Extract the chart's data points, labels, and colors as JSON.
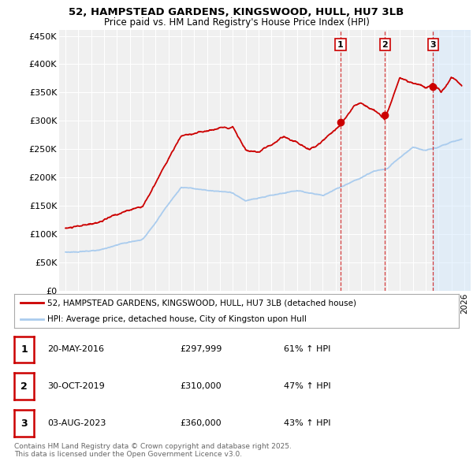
{
  "title_line1": "52, HAMPSTEAD GARDENS, KINGSWOOD, HULL, HU7 3LB",
  "title_line2": "Price paid vs. HM Land Registry's House Price Index (HPI)",
  "background_color": "#ffffff",
  "plot_bg_color": "#f0f0f0",
  "grid_color": "#ffffff",
  "red_color": "#cc0000",
  "blue_color": "#aaccee",
  "sale_points": [
    {
      "date_num": 2016.38,
      "price": 297999,
      "label": "1"
    },
    {
      "date_num": 2019.83,
      "price": 310000,
      "label": "2"
    },
    {
      "date_num": 2023.58,
      "price": 360000,
      "label": "3"
    }
  ],
  "legend_entries": [
    "52, HAMPSTEAD GARDENS, KINGSWOOD, HULL, HU7 3LB (detached house)",
    "HPI: Average price, detached house, City of Kingston upon Hull"
  ],
  "table_data": [
    [
      "1",
      "20-MAY-2016",
      "£297,999",
      "61% ↑ HPI"
    ],
    [
      "2",
      "30-OCT-2019",
      "£310,000",
      "47% ↑ HPI"
    ],
    [
      "3",
      "03-AUG-2023",
      "£360,000",
      "43% ↑ HPI"
    ]
  ],
  "footer": "Contains HM Land Registry data © Crown copyright and database right 2025.\nThis data is licensed under the Open Government Licence v3.0.",
  "ylim": [
    0,
    460000
  ],
  "xlim_start": 1994.5,
  "xlim_end": 2026.5,
  "yticks": [
    0,
    50000,
    100000,
    150000,
    200000,
    250000,
    300000,
    350000,
    400000,
    450000
  ]
}
